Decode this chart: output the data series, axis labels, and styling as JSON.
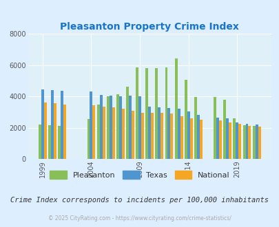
{
  "title": "Pleasanton Property Crime Index",
  "title_color": "#1874CD",
  "subtitle": "Crime Index corresponds to incidents per 100,000 inhabitants",
  "footer": "© 2025 CityRating.com - https://www.cityrating.com/crime-statistics/",
  "years": [
    1999,
    2000,
    2001,
    2004,
    2005,
    2006,
    2007,
    2008,
    2009,
    2010,
    2011,
    2012,
    2013,
    2014,
    2015,
    2017,
    2018,
    2019,
    2020,
    2021
  ],
  "pleasanton": [
    2200,
    2150,
    2100,
    2550,
    3500,
    4000,
    4150,
    4650,
    5850,
    5800,
    5800,
    5850,
    6450,
    5050,
    3950,
    3950,
    3800,
    2600,
    2150,
    2100
  ],
  "texas": [
    4450,
    4400,
    4350,
    4300,
    4100,
    4050,
    4000,
    4050,
    4000,
    3350,
    3300,
    3250,
    3200,
    3050,
    2800,
    2650,
    2600,
    2350,
    2250,
    2200
  ],
  "national": [
    3600,
    3560,
    3500,
    3450,
    3350,
    3300,
    3200,
    3100,
    2950,
    2950,
    2950,
    2900,
    2750,
    2600,
    2500,
    2450,
    2350,
    2250,
    2100,
    2050
  ],
  "bar_colors": [
    "#88c057",
    "#4f95d0",
    "#f5a623"
  ],
  "bg_color": "#ddeeff",
  "plot_bg_color": "#dff0f8",
  "ylim": [
    0,
    8000
  ],
  "yticks": [
    0,
    2000,
    4000,
    6000,
    8000
  ],
  "xtick_labels": [
    "1999",
    "2004",
    "2009",
    "2014",
    "2019"
  ],
  "xtick_positions": [
    1999,
    2004,
    2009,
    2014,
    2019
  ],
  "legend_labels": [
    "Pleasanton",
    "Texas",
    "National"
  ],
  "figsize": [
    4.06,
    3.3
  ],
  "dpi": 100
}
